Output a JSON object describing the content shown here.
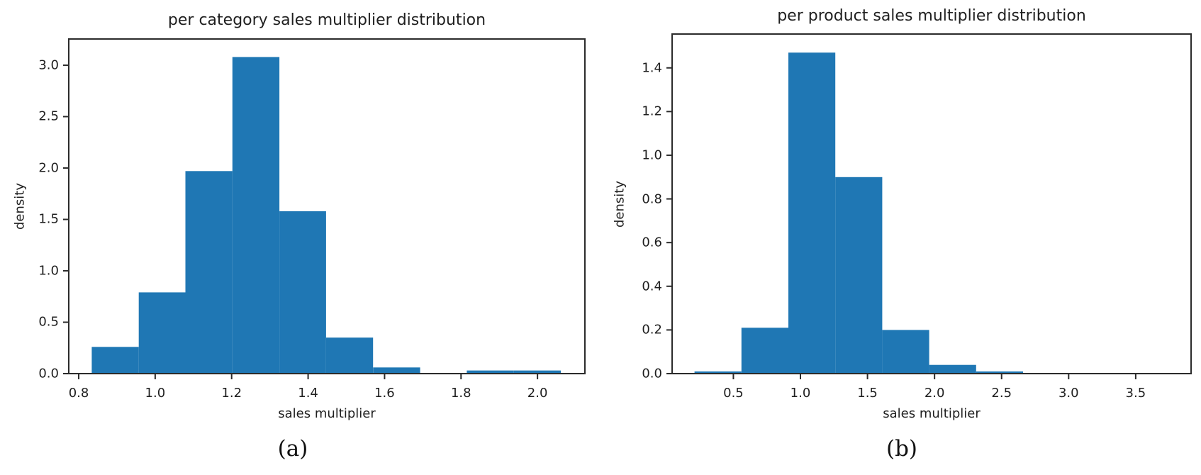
{
  "figure": {
    "background": "#ffffff",
    "colors": {
      "bar": "#1f77b4",
      "text": "#1f1f1f",
      "spine": "#2b2b2b"
    }
  },
  "chart_data": [
    {
      "type": "bar",
      "subtype": "histogram",
      "panel": "a",
      "title": "per category sales multiplier distribution",
      "xlabel": "sales multiplier",
      "ylabel": "density",
      "caption": "(a)",
      "bar_color": "#1f77b4",
      "bin_edges": [
        0.834,
        0.957,
        1.079,
        1.202,
        1.325,
        1.447,
        1.57,
        1.693,
        1.815,
        1.938,
        2.061
      ],
      "densities": [
        0.26,
        0.79,
        1.97,
        3.08,
        1.58,
        0.35,
        0.06,
        0.0,
        0.03,
        0.03
      ],
      "xticks": [
        0.8,
        1.0,
        1.2,
        1.4,
        1.6,
        1.8,
        2.0
      ],
      "yticks": [
        0.0,
        0.5,
        1.0,
        1.5,
        2.0,
        2.5,
        3.0
      ],
      "xlim": [
        0.774,
        2.124
      ],
      "ylim": [
        0,
        3.255
      ],
      "grid": false,
      "legend": null
    },
    {
      "type": "bar",
      "subtype": "histogram",
      "panel": "b",
      "title": "per product sales multiplier distribution",
      "xlabel": "sales multiplier",
      "ylabel": "density",
      "caption": "(b)",
      "bar_color": "#1f77b4",
      "bin_edges": [
        0.21,
        0.56,
        0.91,
        1.26,
        1.61,
        1.96,
        2.31,
        2.66,
        3.01,
        3.36,
        3.71
      ],
      "densities": [
        0.01,
        0.21,
        1.47,
        0.9,
        0.2,
        0.04,
        0.01,
        0.0,
        0.0,
        0.0
      ],
      "xticks": [
        0.5,
        1.0,
        1.5,
        2.0,
        2.5,
        3.0,
        3.5
      ],
      "yticks": [
        0.0,
        0.2,
        0.4,
        0.6,
        0.8,
        1.0,
        1.2,
        1.4
      ],
      "xlim": [
        0.043,
        3.913
      ],
      "ylim": [
        0,
        1.555
      ],
      "grid": false,
      "legend": null
    }
  ]
}
